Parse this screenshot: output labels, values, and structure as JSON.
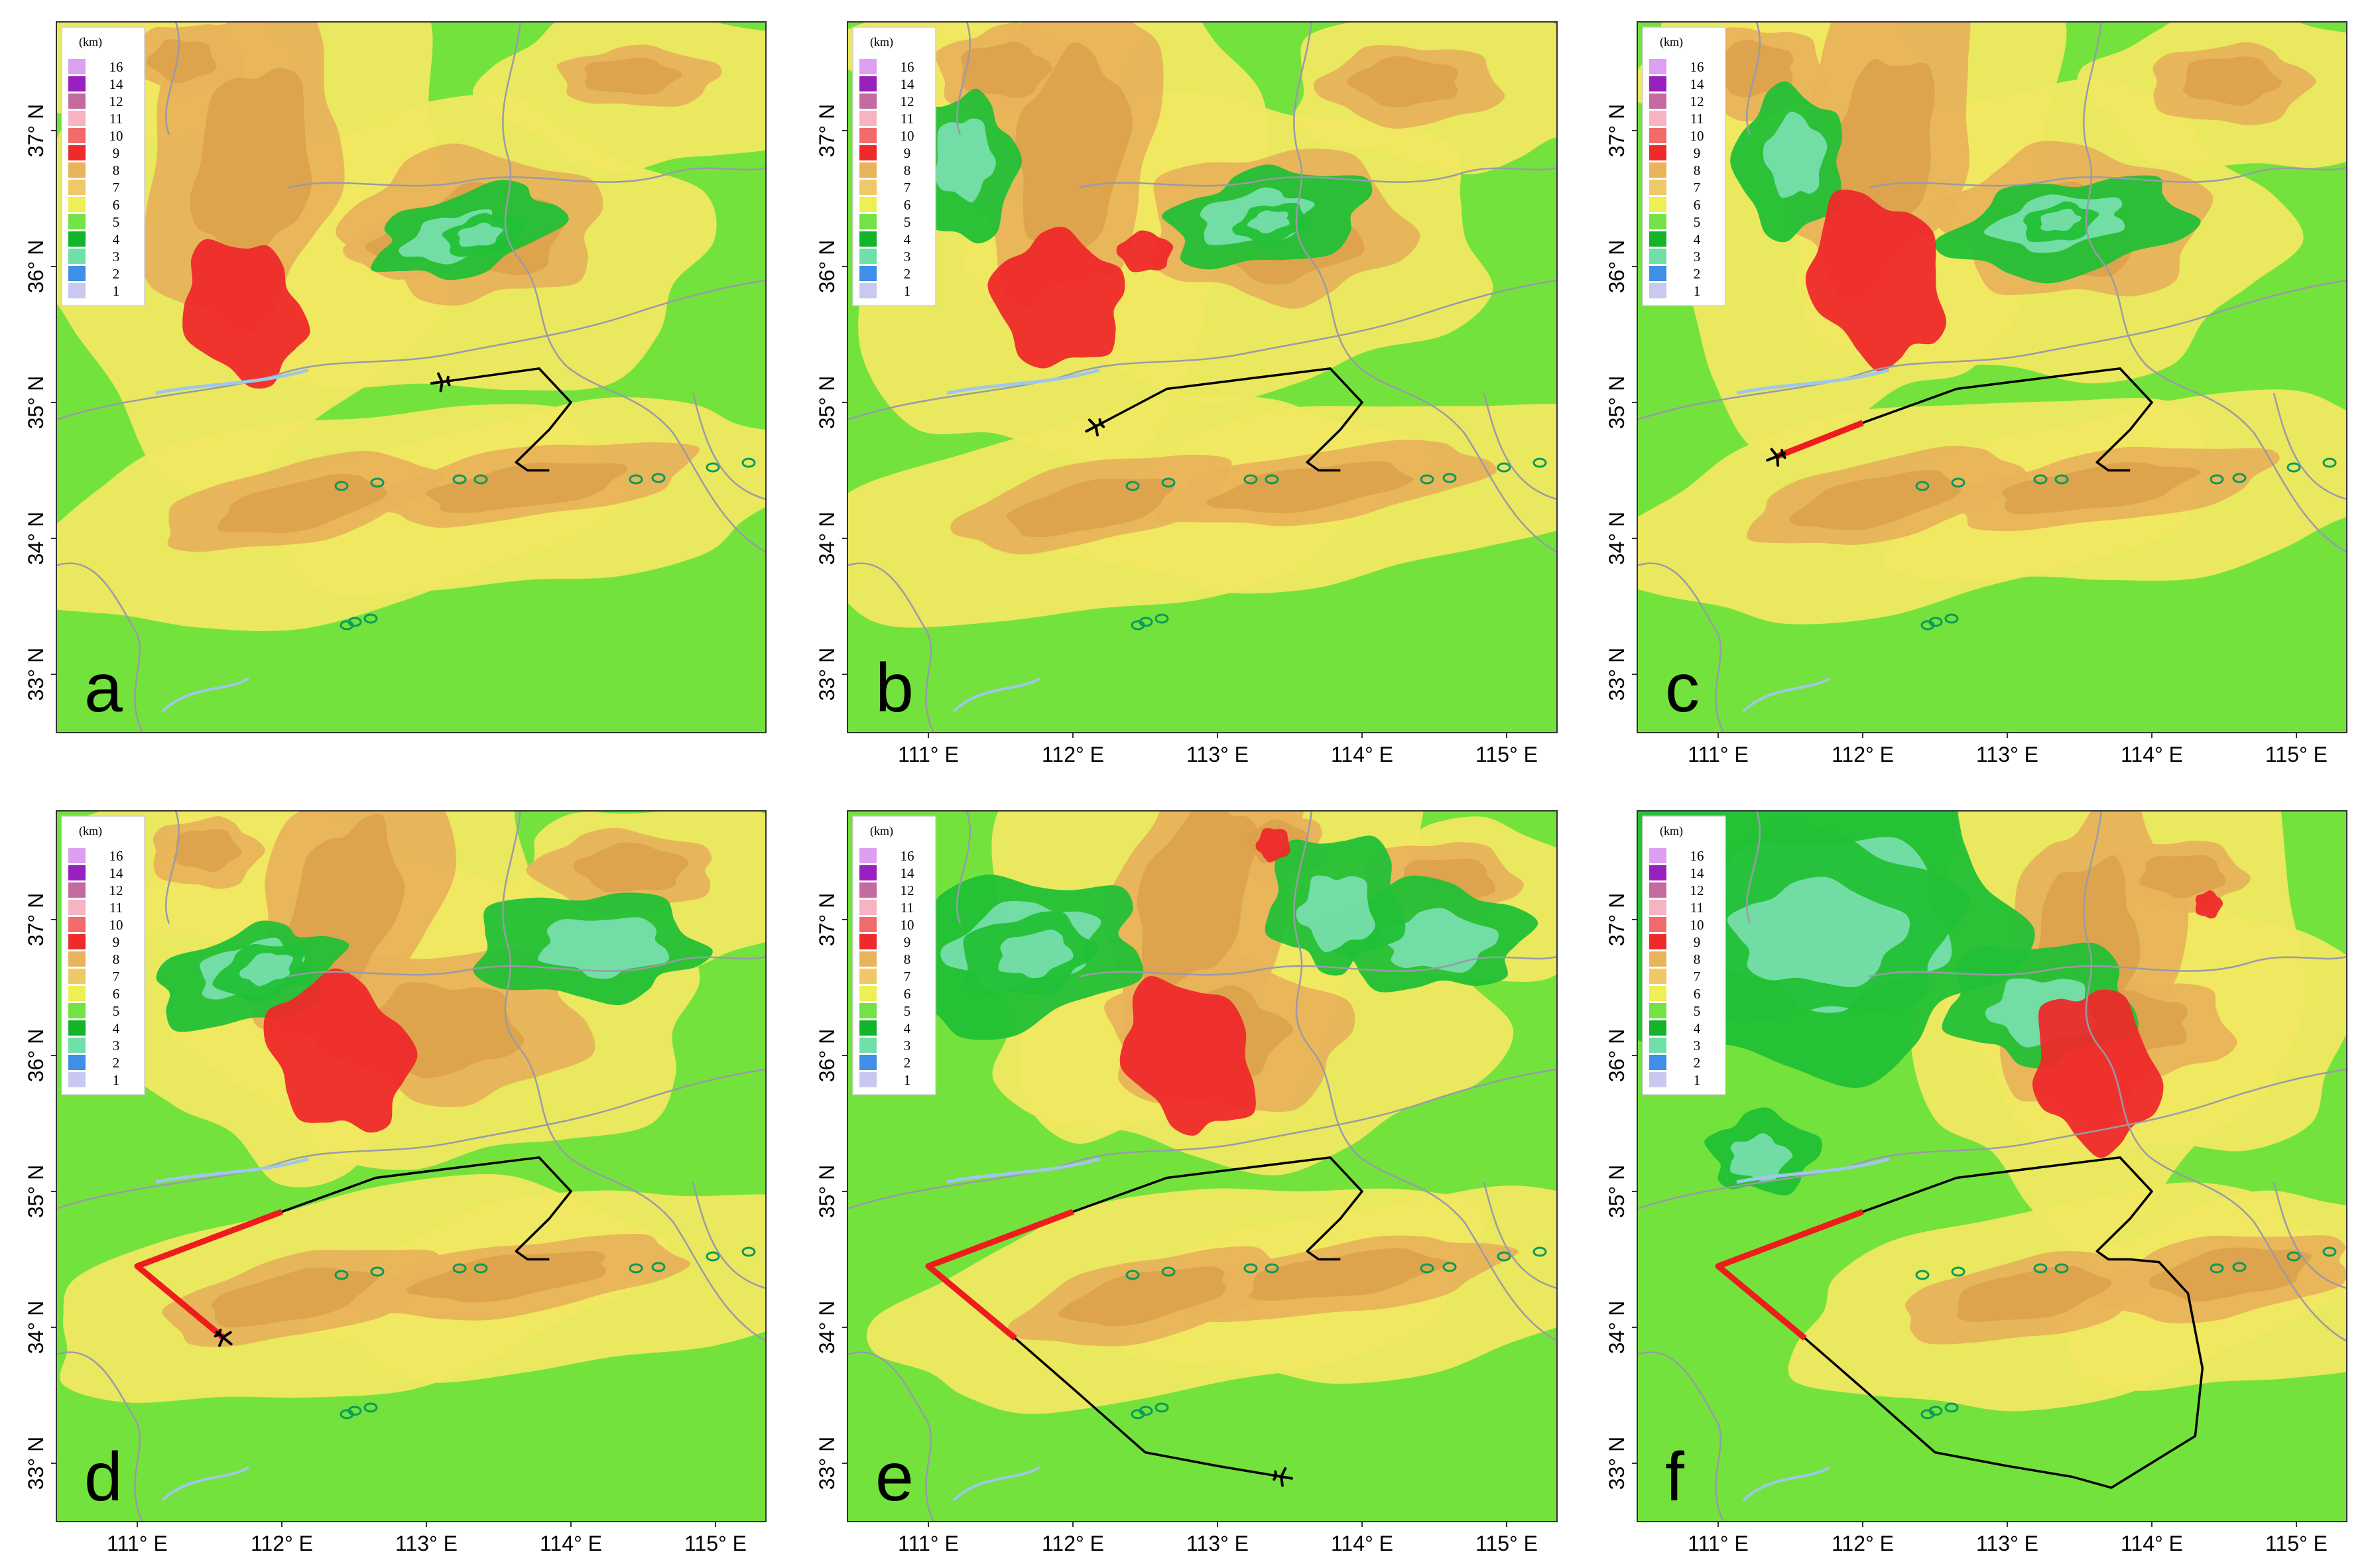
{
  "figure": {
    "panels": [
      {
        "label": "a",
        "plane_fraction": 0.0
      },
      {
        "label": "b",
        "plane_fraction": 0.13
      },
      {
        "label": "c",
        "plane_fraction": 0.22
      },
      {
        "label": "d",
        "plane_fraction": 0.42
      },
      {
        "label": "e",
        "plane_fraction": 0.74
      },
      {
        "label": "f",
        "plane_fraction": 1.0
      }
    ],
    "lon_ticks": [
      "111° E",
      "112° E",
      "113° E",
      "114° E",
      "115° E"
    ],
    "lat_ticks": [
      "33° N",
      "34° N",
      "35° N",
      "36° N",
      "37° N"
    ],
    "legend": {
      "title": "(km)",
      "levels": [
        {
          "label": "16",
          "color": "#dda0f0"
        },
        {
          "label": "14",
          "color": "#9a1fbf"
        },
        {
          "label": "12",
          "color": "#c46a9e"
        },
        {
          "label": "11",
          "color": "#f7b4c0"
        },
        {
          "label": "10",
          "color": "#f26b6b"
        },
        {
          "label": "9",
          "color": "#ee2a2a"
        },
        {
          "label": "8",
          "color": "#e8b35a"
        },
        {
          "label": "7",
          "color": "#f0c868"
        },
        {
          "label": "6",
          "color": "#eeee55"
        },
        {
          "label": "5",
          "color": "#72e245"
        },
        {
          "label": "4",
          "color": "#12b42a"
        },
        {
          "label": "3",
          "color": "#6ee0a8"
        },
        {
          "label": "2",
          "color": "#3f8fe8"
        },
        {
          "label": "1",
          "color": "#c8c8f0"
        }
      ]
    },
    "colors": {
      "background_green": "#74e23c",
      "track": "#000000",
      "track_highlight": "#ee1c1c",
      "borders": "#9a9aa8",
      "rivers": "#9ec8e8"
    }
  }
}
